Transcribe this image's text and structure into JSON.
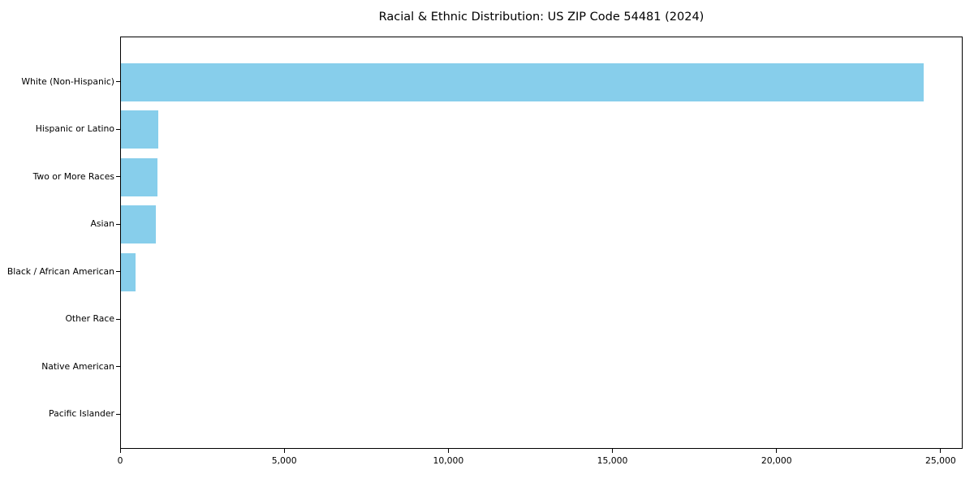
{
  "chart_data": {
    "type": "bar",
    "orientation": "horizontal",
    "title": "Racial & Ethnic Distribution: US ZIP Code 54481 (2024)",
    "categories": [
      "White (Non-Hispanic)",
      "Hispanic or Latino",
      "Two or More Races",
      "Asian",
      "Black / African American",
      "Other Race",
      "Native American",
      "Pacific Islander"
    ],
    "values": [
      24450,
      1130,
      1105,
      1055,
      450,
      0,
      0,
      0
    ],
    "xlabel": "",
    "ylabel": "",
    "xlim": [
      0,
      25670
    ],
    "x_ticks": [
      0,
      5000,
      10000,
      15000,
      20000,
      25000
    ],
    "x_tick_labels": [
      "0",
      "5,000",
      "10,000",
      "15,000",
      "20,000",
      "25,000"
    ],
    "bar_color": "#87CEEB",
    "axis_color": "#000000",
    "grid": false,
    "legend": null
  }
}
